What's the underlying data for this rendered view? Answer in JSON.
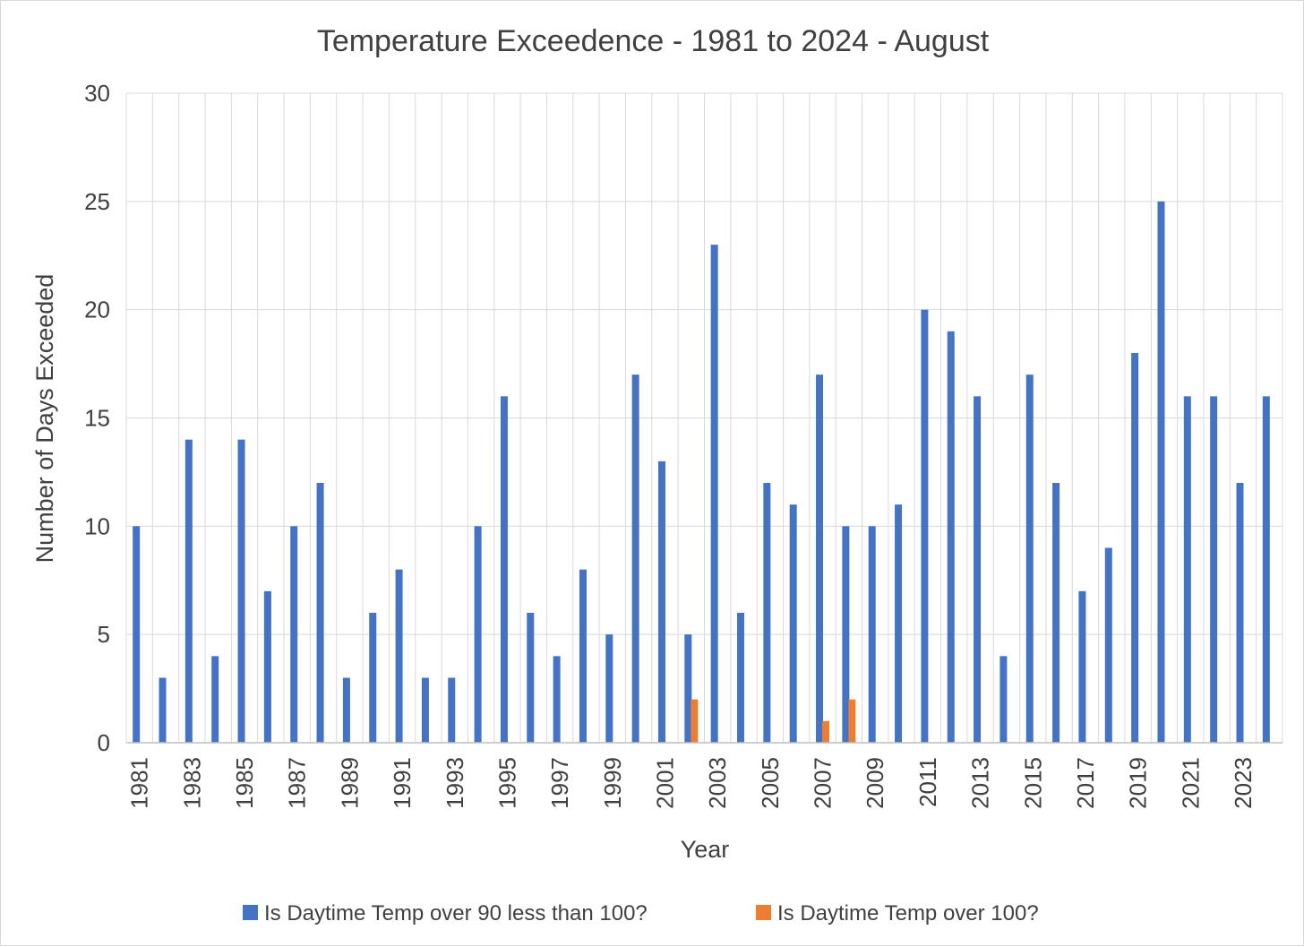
{
  "chart_data": {
    "type": "bar",
    "title": "Temperature Exceedence - 1981 to 2024 - August",
    "xlabel": "Year",
    "ylabel": "Number of Days Exceeded",
    "ylim": [
      0,
      30
    ],
    "yticks": [
      0,
      5,
      10,
      15,
      20,
      25,
      30
    ],
    "grid": true,
    "legend_position": "bottom",
    "categories": [
      "1981",
      "1982",
      "1983",
      "1984",
      "1985",
      "1986",
      "1987",
      "1988",
      "1989",
      "1990",
      "1991",
      "1992",
      "1993",
      "1994",
      "1995",
      "1996",
      "1997",
      "1998",
      "1999",
      "2000",
      "2001",
      "2002",
      "2003",
      "2004",
      "2005",
      "2006",
      "2007",
      "2008",
      "2009",
      "2010",
      "2011",
      "2012",
      "2013",
      "2014",
      "2015",
      "2016",
      "2017",
      "2018",
      "2019",
      "2020",
      "2021",
      "2022",
      "2023",
      "2024"
    ],
    "x_tick_labels": [
      "1981",
      "1983",
      "1985",
      "1987",
      "1989",
      "1991",
      "1993",
      "1995",
      "1997",
      "1999",
      "2001",
      "2003",
      "2005",
      "2007",
      "2009",
      "2011",
      "2013",
      "2015",
      "2017",
      "2019",
      "2021",
      "2023"
    ],
    "series": [
      {
        "name": "Is Daytime Temp over 90 less than 100?",
        "color": "#4472c4",
        "values": [
          10,
          3,
          14,
          4,
          14,
          7,
          10,
          12,
          3,
          6,
          8,
          3,
          3,
          10,
          16,
          6,
          4,
          8,
          5,
          17,
          13,
          5,
          23,
          6,
          12,
          11,
          17,
          10,
          10,
          11,
          20,
          19,
          16,
          4,
          17,
          12,
          7,
          9,
          18,
          25,
          16,
          16,
          12,
          16
        ]
      },
      {
        "name": "Is Daytime Temp over 100?",
        "color": "#ed7d31",
        "values": [
          0,
          0,
          0,
          0,
          0,
          0,
          0,
          0,
          0,
          0,
          0,
          0,
          0,
          0,
          0,
          0,
          0,
          0,
          0,
          0,
          0,
          2,
          0,
          0,
          0,
          0,
          1,
          2,
          0,
          0,
          0,
          0,
          0,
          0,
          0,
          0,
          0,
          0,
          0,
          0,
          0,
          0,
          0,
          0
        ]
      }
    ]
  }
}
